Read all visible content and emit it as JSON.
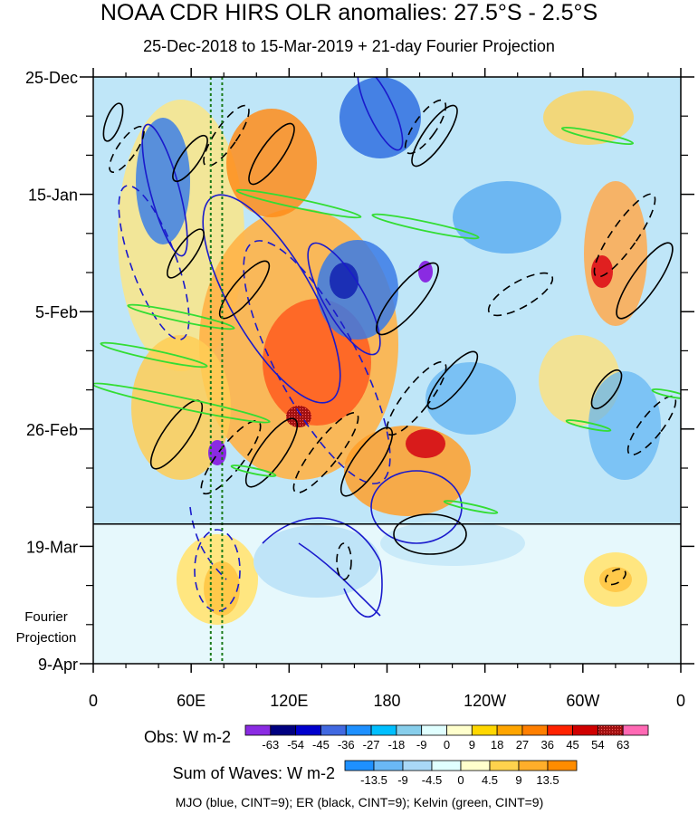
{
  "chart_data": {
    "type": "heatmap",
    "title": "NOAA CDR HIRS OLR anomalies: 27.5°S - 2.5°S",
    "subtitle": "25-Dec-2018 to 15-Mar-2019 + 21-day Fourier Projection",
    "x_ticks": [
      "0",
      "60E",
      "120E",
      "180",
      "120W",
      "60W",
      "0"
    ],
    "x_tick_lon": [
      0,
      60,
      120,
      180,
      240,
      300,
      360
    ],
    "y_ticks": [
      "25-Dec",
      "15-Jan",
      "5-Feb",
      "26-Feb",
      "19-Mar",
      "9-Apr"
    ],
    "y_tick_day": [
      0,
      21,
      42,
      63,
      84,
      105
    ],
    "y_extra_label": [
      "Fourier",
      "Projection"
    ],
    "projection_start_day": 80,
    "mjo_phase_lines_lon": [
      72,
      79
    ],
    "obs_legend": {
      "label": "Obs: W m-2",
      "ticks": [
        "-63",
        "-54",
        "-45",
        "-36",
        "-27",
        "-18",
        "-9",
        "0",
        "9",
        "18",
        "27",
        "36",
        "45",
        "54",
        "63"
      ],
      "colors": [
        "#8a2be2",
        "#000080",
        "#0000cd",
        "#4169e1",
        "#1e90ff",
        "#00bfff",
        "#87ceeb",
        "#e0ffff",
        "#ffffcc",
        "#ffd700",
        "#ffa500",
        "#ff7f00",
        "#ff2200",
        "#d00000",
        "#a01010",
        "#ff69b4"
      ]
    },
    "waves_legend": {
      "label": "Sum of Waves: W m-2",
      "ticks": [
        "-13.5",
        "-9",
        "-4.5",
        "0",
        "4.5",
        "9",
        "13.5"
      ],
      "colors": [
        "#1e90ff",
        "#6ab8f5",
        "#a9d8f7",
        "#e0ffff",
        "#ffffcc",
        "#ffd24d",
        "#ffae2a",
        "#ff8c00"
      ]
    },
    "footer": "MJO (blue, CINT=9); ER (black, CINT=9); Kelvin (green, CINT=9)"
  }
}
